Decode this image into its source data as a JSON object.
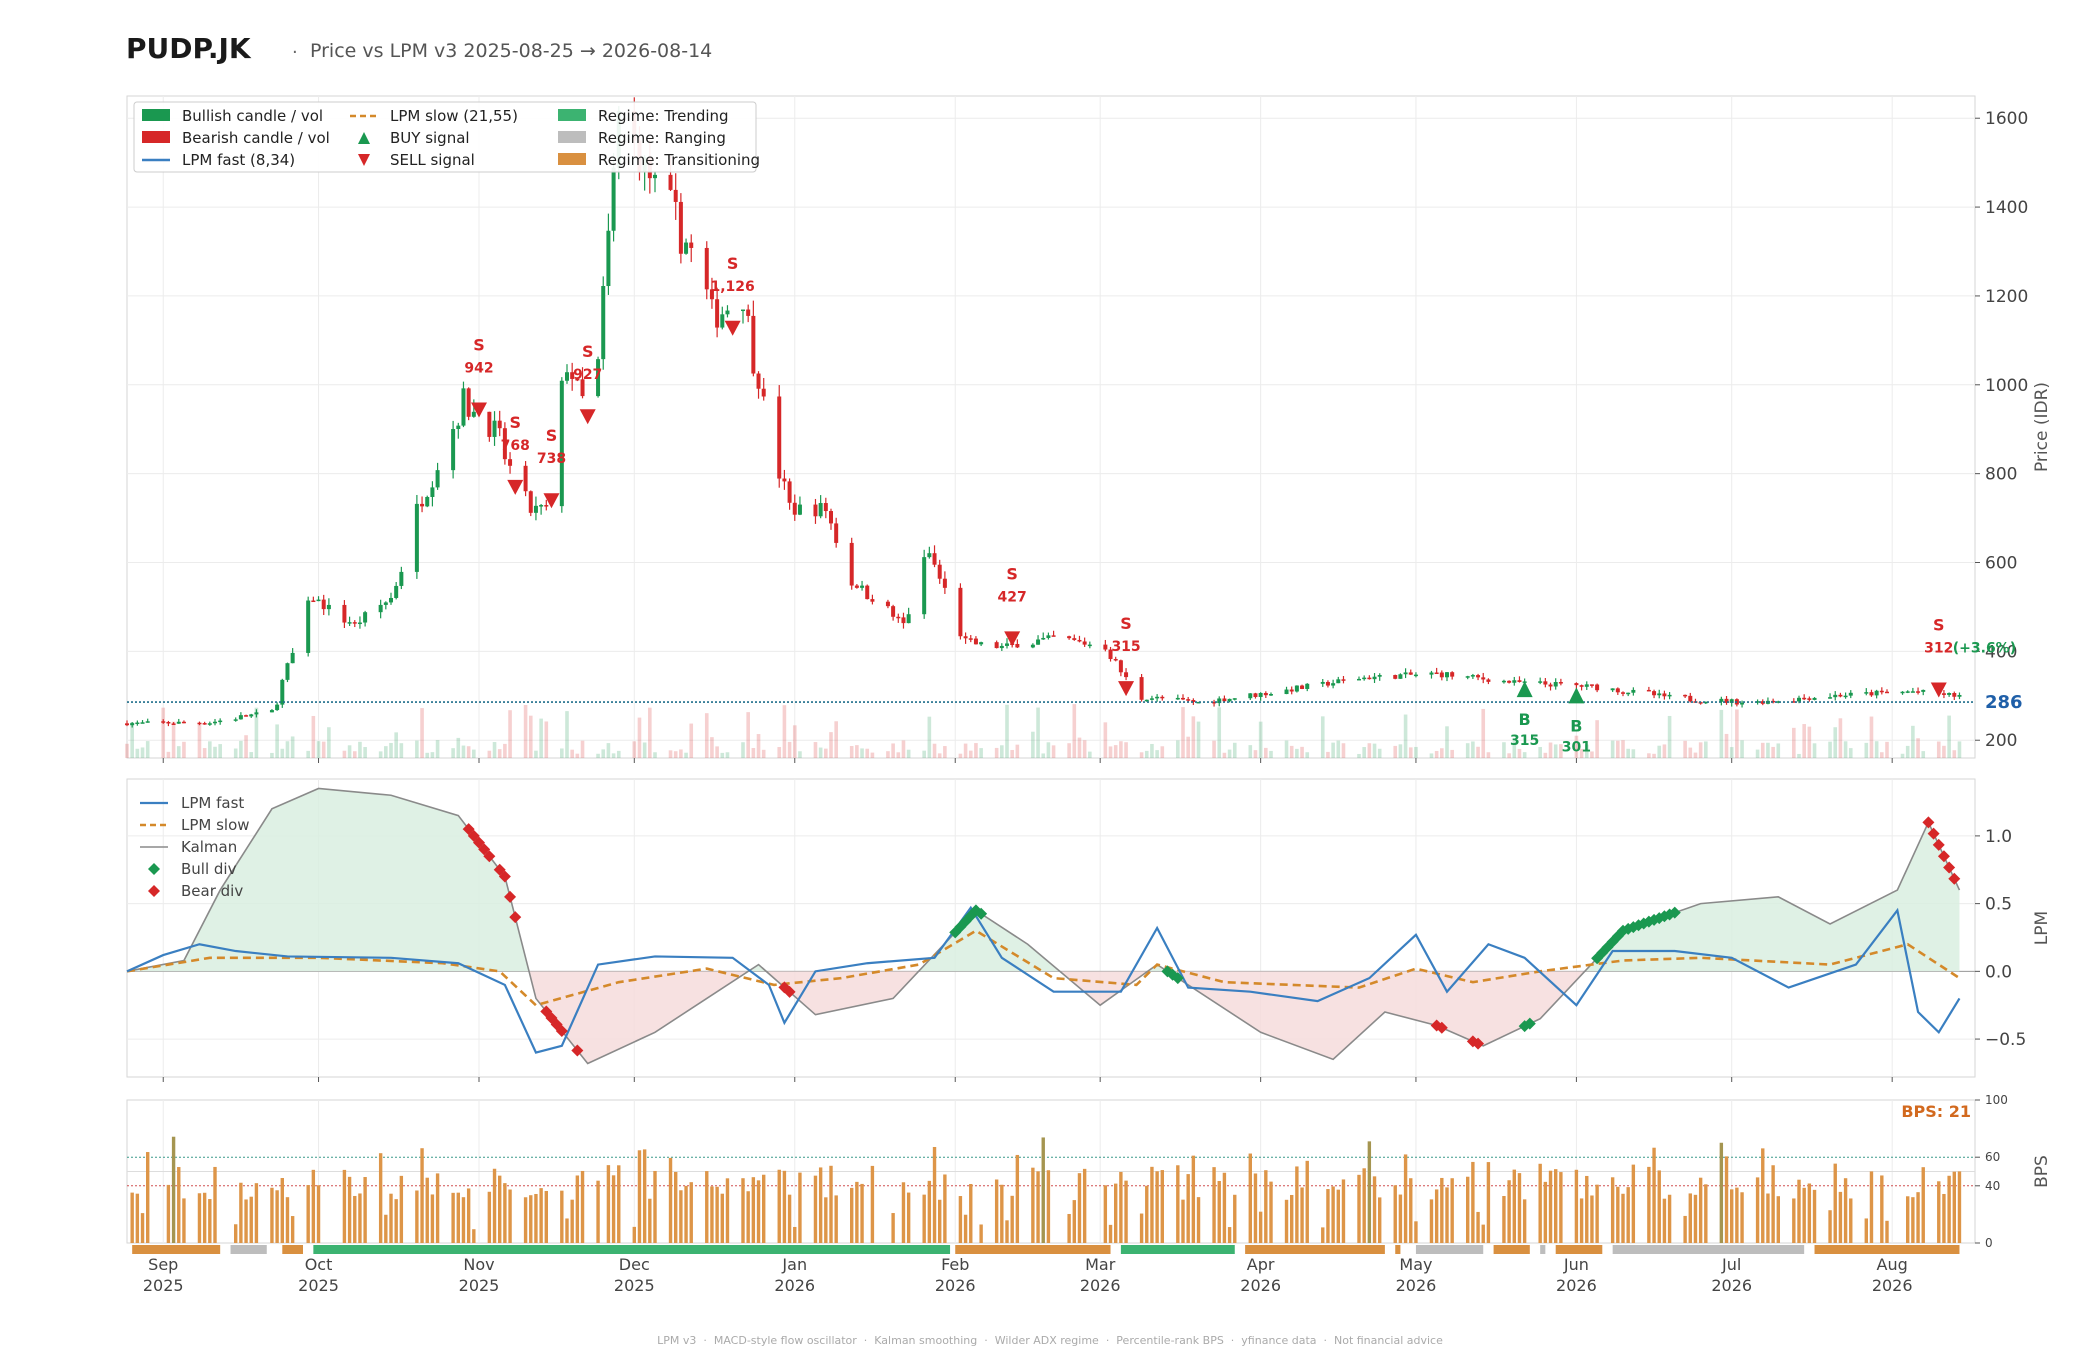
{
  "header": {
    "ticker": "PUDP.JK",
    "separator": "·",
    "subtitle": "Price vs LPM v3  2025-08-25 → 2026-08-14"
  },
  "footer": "LPM v3  ·  MACD-style flow oscillator  ·  Kalman smoothing  ·  Wilder ADX regime  ·  Percentile-rank BPS  ·  yfinance data  ·  Not financial advice",
  "colors": {
    "bull": "#1a9850",
    "bear": "#d62728",
    "lpm_fast": "#3a7fc1",
    "lpm_slow": "#d4892a",
    "kalman": "#8a8a8a",
    "trending": "#3cb371",
    "ranging": "#bdbdbd",
    "transitioning": "#d99040",
    "bps_bar": "#dd9548",
    "bps_bar_high": "#a59550",
    "last_price": "#1f5fa8"
  },
  "chart_data": [
    {
      "panel": "price",
      "type": "candlestick",
      "ylabel": "Price (IDR)",
      "y_ticks": [
        200,
        400,
        600,
        800,
        1000,
        1200,
        1400,
        1600
      ],
      "ylim": [
        160,
        1650
      ],
      "x_range": [
        "2025-08-25",
        "2026-08-14"
      ],
      "last_price": 286,
      "last_price_label": "286",
      "legend": {
        "placement": "upper-left",
        "entries": [
          {
            "label": "Bullish candle / vol",
            "kind": "bull"
          },
          {
            "label": "Bearish candle / vol",
            "kind": "bear"
          },
          {
            "label": "LPM fast (8,34)",
            "kind": "fast"
          },
          {
            "label": "LPM slow (21,55)",
            "kind": "slow"
          },
          {
            "label": "BUY signal",
            "kind": "buy"
          },
          {
            "label": "SELL signal",
            "kind": "sell"
          },
          {
            "label": "Regime: Trending",
            "kind": "trending"
          },
          {
            "label": "Regime: Ranging",
            "kind": "ranging"
          },
          {
            "label": "Regime: Transitioning",
            "kind": "transitioning"
          }
        ]
      },
      "candle_anchors": [
        [
          "2025-08-25",
          238
        ],
        [
          "2025-09-10",
          240
        ],
        [
          "2025-09-22",
          265
        ],
        [
          "2025-09-30",
          520
        ],
        [
          "2025-10-08",
          460
        ],
        [
          "2025-10-15",
          520
        ],
        [
          "2025-10-22",
          780
        ],
        [
          "2025-10-29",
          960
        ],
        [
          "2025-11-04",
          900
        ],
        [
          "2025-11-10",
          720
        ],
        [
          "2025-11-14",
          720
        ],
        [
          "2025-11-18",
          1050
        ],
        [
          "2025-11-23",
          900
        ],
        [
          "2025-11-28",
          1600
        ],
        [
          "2025-12-05",
          1450
        ],
        [
          "2025-12-12",
          1300
        ],
        [
          "2025-12-16",
          1150
        ],
        [
          "2025-12-22",
          1200
        ],
        [
          "2025-12-26",
          950
        ],
        [
          "2025-12-31",
          720
        ],
        [
          "2026-01-07",
          720
        ],
        [
          "2026-01-12",
          560
        ],
        [
          "2026-01-22",
          460
        ],
        [
          "2026-01-27",
          620
        ],
        [
          "2026-02-03",
          420
        ],
        [
          "2026-02-10",
          410
        ],
        [
          "2026-02-20",
          430
        ],
        [
          "2026-03-02",
          410
        ],
        [
          "2026-03-08",
          300
        ],
        [
          "2026-03-20",
          285
        ],
        [
          "2026-04-05",
          310
        ],
        [
          "2026-04-20",
          340
        ],
        [
          "2026-05-05",
          350
        ],
        [
          "2026-05-20",
          330
        ],
        [
          "2026-06-05",
          320
        ],
        [
          "2026-06-20",
          295
        ],
        [
          "2026-07-05",
          285
        ],
        [
          "2026-07-20",
          300
        ],
        [
          "2026-08-05",
          310
        ],
        [
          "2026-08-14",
          300
        ]
      ],
      "signals": [
        {
          "type": "SELL",
          "date": "2025-11-01",
          "price": 942,
          "label": "942"
        },
        {
          "type": "SELL",
          "date": "2025-11-08",
          "price": 768,
          "label": "768"
        },
        {
          "type": "SELL",
          "date": "2025-11-15",
          "price": 738,
          "label": "738"
        },
        {
          "type": "SELL",
          "date": "2025-11-22",
          "price": 927,
          "label": "927"
        },
        {
          "type": "SELL",
          "date": "2025-12-20",
          "price": 1126,
          "label": "1,126"
        },
        {
          "type": "SELL",
          "date": "2026-02-12",
          "price": 427,
          "label": "427"
        },
        {
          "type": "SELL",
          "date": "2026-03-06",
          "price": 315,
          "label": "315"
        },
        {
          "type": "BUY",
          "date": "2026-05-22",
          "price": 315,
          "label": "315"
        },
        {
          "type": "BUY",
          "date": "2026-06-01",
          "price": 301,
          "label": "301"
        },
        {
          "type": "SELL",
          "date": "2026-08-10",
          "price": 312,
          "label": "312",
          "pct_label": "(+3.6%)"
        }
      ],
      "signal_letters": {
        "BUY": "B",
        "SELL": "S"
      }
    },
    {
      "panel": "lpm",
      "type": "line",
      "ylabel": "LPM",
      "y_ticks": [
        -0.5,
        0.0,
        0.5,
        1.0
      ],
      "y_tick_labels": [
        "−0.5",
        "0.0",
        "0.5",
        "1.0"
      ],
      "ylim": [
        -0.78,
        1.42
      ],
      "legend": [
        "LPM fast",
        "LPM slow",
        "Kalman",
        "Bull div",
        "Bear div"
      ],
      "series": [
        {
          "name": "LPM fast",
          "points": [
            [
              "2025-08-25",
              0.0
            ],
            [
              "2025-09-01",
              0.12
            ],
            [
              "2025-09-08",
              0.2
            ],
            [
              "2025-09-15",
              0.15
            ],
            [
              "2025-09-25",
              0.11
            ],
            [
              "2025-10-15",
              0.1
            ],
            [
              "2025-10-28",
              0.06
            ],
            [
              "2025-11-06",
              -0.1
            ],
            [
              "2025-11-12",
              -0.6
            ],
            [
              "2025-11-17",
              -0.55
            ],
            [
              "2025-11-24",
              0.05
            ],
            [
              "2025-12-05",
              0.11
            ],
            [
              "2025-12-20",
              0.1
            ],
            [
              "2025-12-27",
              -0.1
            ],
            [
              "2025-12-30",
              -0.38
            ],
            [
              "2026-01-05",
              0.0
            ],
            [
              "2026-01-15",
              0.06
            ],
            [
              "2026-01-28",
              0.1
            ],
            [
              "2026-02-04",
              0.47
            ],
            [
              "2026-02-10",
              0.1
            ],
            [
              "2026-02-20",
              -0.15
            ],
            [
              "2026-03-05",
              -0.15
            ],
            [
              "2026-03-12",
              0.32
            ],
            [
              "2026-03-18",
              -0.12
            ],
            [
              "2026-03-30",
              -0.15
            ],
            [
              "2026-04-12",
              -0.22
            ],
            [
              "2026-04-22",
              -0.05
            ],
            [
              "2026-05-01",
              0.27
            ],
            [
              "2026-05-07",
              -0.15
            ],
            [
              "2026-05-15",
              0.2
            ],
            [
              "2026-05-22",
              0.1
            ],
            [
              "2026-06-01",
              -0.25
            ],
            [
              "2026-06-08",
              0.15
            ],
            [
              "2026-06-20",
              0.15
            ],
            [
              "2026-07-01",
              0.1
            ],
            [
              "2026-07-12",
              -0.12
            ],
            [
              "2026-07-25",
              0.05
            ],
            [
              "2026-08-02",
              0.45
            ],
            [
              "2026-08-06",
              -0.3
            ],
            [
              "2026-08-10",
              -0.45
            ],
            [
              "2026-08-14",
              -0.2
            ]
          ]
        },
        {
          "name": "LPM slow",
          "points": [
            [
              "2025-08-25",
              0.0
            ],
            [
              "2025-09-10",
              0.1
            ],
            [
              "2025-10-01",
              0.1
            ],
            [
              "2025-10-25",
              0.06
            ],
            [
              "2025-11-05",
              0.0
            ],
            [
              "2025-11-12",
              -0.25
            ],
            [
              "2025-11-28",
              -0.08
            ],
            [
              "2025-12-15",
              0.02
            ],
            [
              "2025-12-28",
              -0.1
            ],
            [
              "2026-01-10",
              -0.05
            ],
            [
              "2026-01-25",
              0.05
            ],
            [
              "2026-02-05",
              0.3
            ],
            [
              "2026-02-20",
              -0.05
            ],
            [
              "2026-03-08",
              -0.1
            ],
            [
              "2026-03-12",
              0.05
            ],
            [
              "2026-03-25",
              -0.08
            ],
            [
              "2026-04-20",
              -0.12
            ],
            [
              "2026-05-01",
              0.02
            ],
            [
              "2026-05-12",
              -0.08
            ],
            [
              "2026-05-25",
              0.0
            ],
            [
              "2026-06-10",
              0.08
            ],
            [
              "2026-06-25",
              0.1
            ],
            [
              "2026-07-20",
              0.05
            ],
            [
              "2026-08-04",
              0.2
            ],
            [
              "2026-08-14",
              -0.05
            ]
          ]
        },
        {
          "name": "Kalman",
          "points": [
            [
              "2025-08-25",
              0.0
            ],
            [
              "2025-09-05",
              0.08
            ],
            [
              "2025-09-12",
              0.6
            ],
            [
              "2025-09-22",
              1.2
            ],
            [
              "2025-10-01",
              1.35
            ],
            [
              "2025-10-15",
              1.3
            ],
            [
              "2025-10-28",
              1.15
            ],
            [
              "2025-11-06",
              0.7
            ],
            [
              "2025-11-12",
              -0.2
            ],
            [
              "2025-11-22",
              -0.68
            ],
            [
              "2025-12-05",
              -0.45
            ],
            [
              "2025-12-15",
              -0.2
            ],
            [
              "2025-12-25",
              0.05
            ],
            [
              "2026-01-05",
              -0.32
            ],
            [
              "2026-01-20",
              -0.2
            ],
            [
              "2026-02-05",
              0.45
            ],
            [
              "2026-02-15",
              0.2
            ],
            [
              "2026-03-01",
              -0.25
            ],
            [
              "2026-03-12",
              0.05
            ],
            [
              "2026-04-01",
              -0.45
            ],
            [
              "2026-04-15",
              -0.65
            ],
            [
              "2026-04-25",
              -0.3
            ],
            [
              "2026-05-05",
              -0.4
            ],
            [
              "2026-05-14",
              -0.55
            ],
            [
              "2026-05-25",
              -0.35
            ],
            [
              "2026-06-10",
              0.3
            ],
            [
              "2026-06-25",
              0.5
            ],
            [
              "2026-07-10",
              0.55
            ],
            [
              "2026-07-20",
              0.35
            ],
            [
              "2026-08-02",
              0.6
            ],
            [
              "2026-08-08",
              1.1
            ],
            [
              "2026-08-14",
              0.6
            ]
          ]
        }
      ],
      "bull_div_dates": [
        "2026-02-01",
        "2026-02-02",
        "2026-02-03",
        "2026-02-04",
        "2026-02-05",
        "2026-02-06",
        "2026-03-14",
        "2026-03-15",
        "2026-03-16",
        "2026-05-22",
        "2026-05-23",
        "2026-06-05",
        "2026-06-06",
        "2026-06-07",
        "2026-06-08",
        "2026-06-09",
        "2026-06-10",
        "2026-06-11",
        "2026-06-12",
        "2026-06-13",
        "2026-06-14",
        "2026-06-15",
        "2026-06-16",
        "2026-06-17",
        "2026-06-18",
        "2026-06-19",
        "2026-06-20"
      ],
      "bear_div_dates": [
        "2025-10-30",
        "2025-10-31",
        "2025-11-01",
        "2025-11-02",
        "2025-11-03",
        "2025-11-05",
        "2025-11-06",
        "2025-11-07",
        "2025-11-08",
        "2025-11-14",
        "2025-11-15",
        "2025-11-16",
        "2025-11-17",
        "2025-11-20",
        "2025-12-30",
        "2025-12-31",
        "2026-05-05",
        "2026-05-06",
        "2026-05-12",
        "2026-05-13",
        "2026-08-08",
        "2026-08-09",
        "2026-08-10",
        "2026-08-11",
        "2026-08-12",
        "2026-08-13"
      ]
    },
    {
      "panel": "bps",
      "type": "bar",
      "ylabel": "BPS",
      "y_ticks": [
        0,
        40,
        60,
        100
      ],
      "ylim": [
        0,
        100
      ],
      "ref_lines": [
        40,
        60
      ],
      "current_label": "BPS: 21",
      "current_value": 21,
      "regime_segments": [
        {
          "regime": "Transitioning",
          "start": "2025-08-26",
          "end": "2025-09-12"
        },
        {
          "regime": "Ranging",
          "start": "2025-09-14",
          "end": "2025-09-21"
        },
        {
          "regime": "Transitioning",
          "start": "2025-09-24",
          "end": "2025-09-28"
        },
        {
          "regime": "Trending",
          "start": "2025-09-30",
          "end": "2026-01-31"
        },
        {
          "regime": "Transitioning",
          "start": "2026-02-01",
          "end": "2026-03-03"
        },
        {
          "regime": "Trending",
          "start": "2026-03-05",
          "end": "2026-03-27"
        },
        {
          "regime": "Transitioning",
          "start": "2026-03-29",
          "end": "2026-04-25"
        },
        {
          "regime": "Transitioning",
          "start": "2026-04-27",
          "end": "2026-04-28"
        },
        {
          "regime": "Ranging",
          "start": "2026-05-01",
          "end": "2026-05-14"
        },
        {
          "regime": "Transitioning",
          "start": "2026-05-16",
          "end": "2026-05-23"
        },
        {
          "regime": "Ranging",
          "start": "2026-05-25",
          "end": "2026-05-26"
        },
        {
          "regime": "Transitioning",
          "start": "2026-05-28",
          "end": "2026-06-06"
        },
        {
          "regime": "Ranging",
          "start": "2026-06-08",
          "end": "2026-07-15"
        },
        {
          "regime": "Transitioning",
          "start": "2026-07-17",
          "end": "2026-08-14"
        }
      ]
    }
  ],
  "x_axis": {
    "ticks": [
      {
        "date": "2025-09-01",
        "month": "Sep",
        "year": "2025"
      },
      {
        "date": "2025-10-01",
        "month": "Oct",
        "year": "2025"
      },
      {
        "date": "2025-11-01",
        "month": "Nov",
        "year": "2025"
      },
      {
        "date": "2025-12-01",
        "month": "Dec",
        "year": "2025"
      },
      {
        "date": "2026-01-01",
        "month": "Jan",
        "year": "2026"
      },
      {
        "date": "2026-02-01",
        "month": "Feb",
        "year": "2026"
      },
      {
        "date": "2026-03-01",
        "month": "Mar",
        "year": "2026"
      },
      {
        "date": "2026-04-01",
        "month": "Apr",
        "year": "2026"
      },
      {
        "date": "2026-05-01",
        "month": "May",
        "year": "2026"
      },
      {
        "date": "2026-06-01",
        "month": "Jun",
        "year": "2026"
      },
      {
        "date": "2026-07-01",
        "month": "Jul",
        "year": "2026"
      },
      {
        "date": "2026-08-01",
        "month": "Aug",
        "year": "2026"
      }
    ]
  }
}
